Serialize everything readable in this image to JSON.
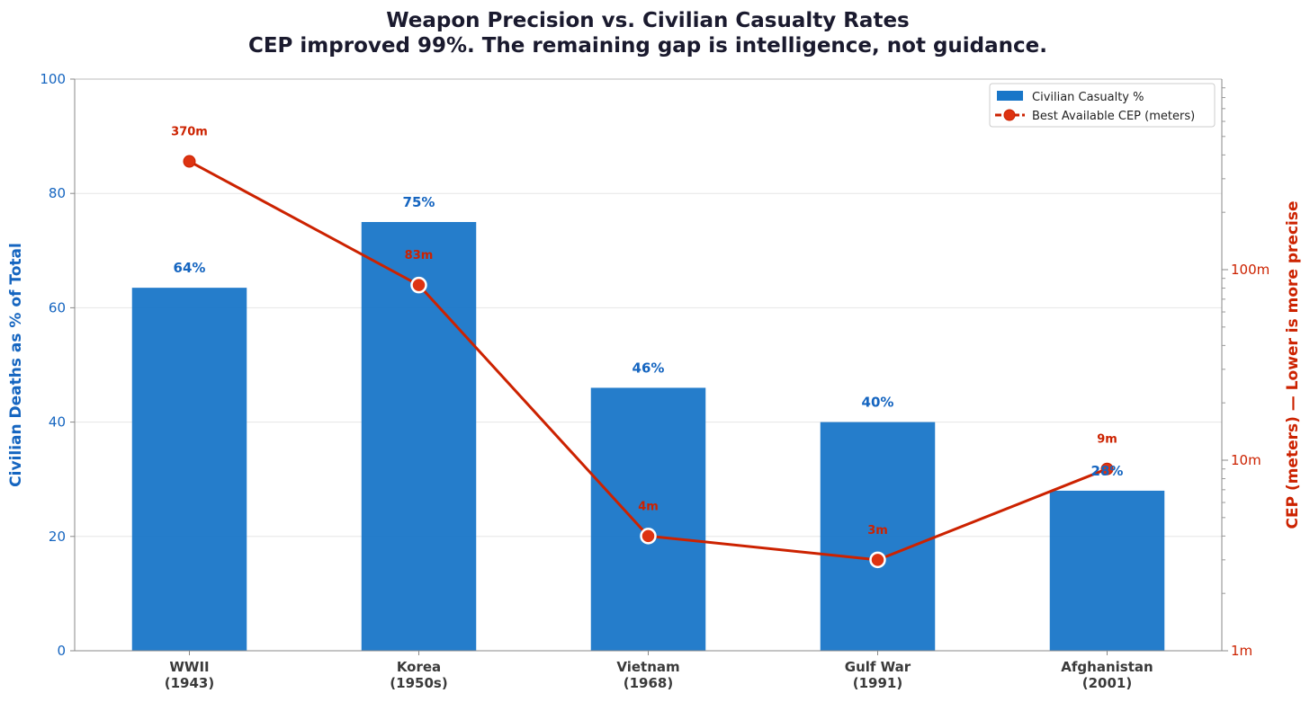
{
  "chart_data": {
    "type": "bar",
    "title": "Weapon Precision vs. Civilian Casualty Rates",
    "subtitle": "CEP improved 99%. The remaining gap is intelligence, not guidance.",
    "categories": [
      [
        "WWII",
        "(1943)"
      ],
      [
        "Korea",
        "(1950s)"
      ],
      [
        "Vietnam",
        "(1968)"
      ],
      [
        "Gulf War",
        "(1991)"
      ],
      [
        "Afghanistan",
        "(2001)"
      ]
    ],
    "bar_series": {
      "name": "Civilian Casualty %",
      "values": [
        63.5,
        75,
        46,
        40,
        28
      ],
      "labels": [
        "64%",
        "75%",
        "46%",
        "40%",
        "28%"
      ],
      "color": "#1976c8"
    },
    "line_series": {
      "name": "Best Available CEP (meters)",
      "values": [
        370,
        83,
        4,
        3,
        9
      ],
      "labels": [
        "370m",
        "83m",
        "4m",
        "3m",
        "9m"
      ],
      "color": "#cc2200"
    },
    "left_axis": {
      "label": "Civilian Deaths as % of Total",
      "ylim": [
        0,
        100
      ],
      "ticks": [
        0,
        20,
        40,
        60,
        80,
        100
      ],
      "tick_labels": [
        "0",
        "20",
        "40",
        "60",
        "80",
        "100"
      ],
      "color": "#1565c0"
    },
    "right_axis": {
      "label": "CEP (meters) — Lower is more precise",
      "scale": "log",
      "ylim": [
        1,
        1000
      ],
      "ticks": [
        1,
        10,
        100
      ],
      "tick_labels": [
        "1m",
        "10m",
        "100m"
      ],
      "color": "#cc2200"
    },
    "grid": true,
    "legend_position": "top-right"
  }
}
